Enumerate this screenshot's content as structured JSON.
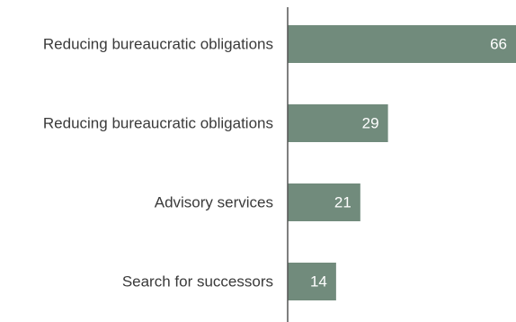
{
  "chart_data": {
    "type": "bar",
    "orientation": "horizontal",
    "categories": [
      "Reducing bureaucratic obligations",
      "Reducing bureaucratic obligations",
      "Advisory services",
      "Search for successors"
    ],
    "values": [
      66,
      29,
      21,
      14
    ],
    "data_labels": [
      "66",
      "29",
      "21",
      "14"
    ],
    "title": "",
    "xlabel": "",
    "ylabel": "",
    "xlim": [
      0,
      66
    ],
    "grid": false,
    "legend": "none",
    "bar_color": "#718b7c",
    "axis_color": "#555555",
    "label_color": "#3a3a3a",
    "data_label_color": "#ffffff"
  }
}
